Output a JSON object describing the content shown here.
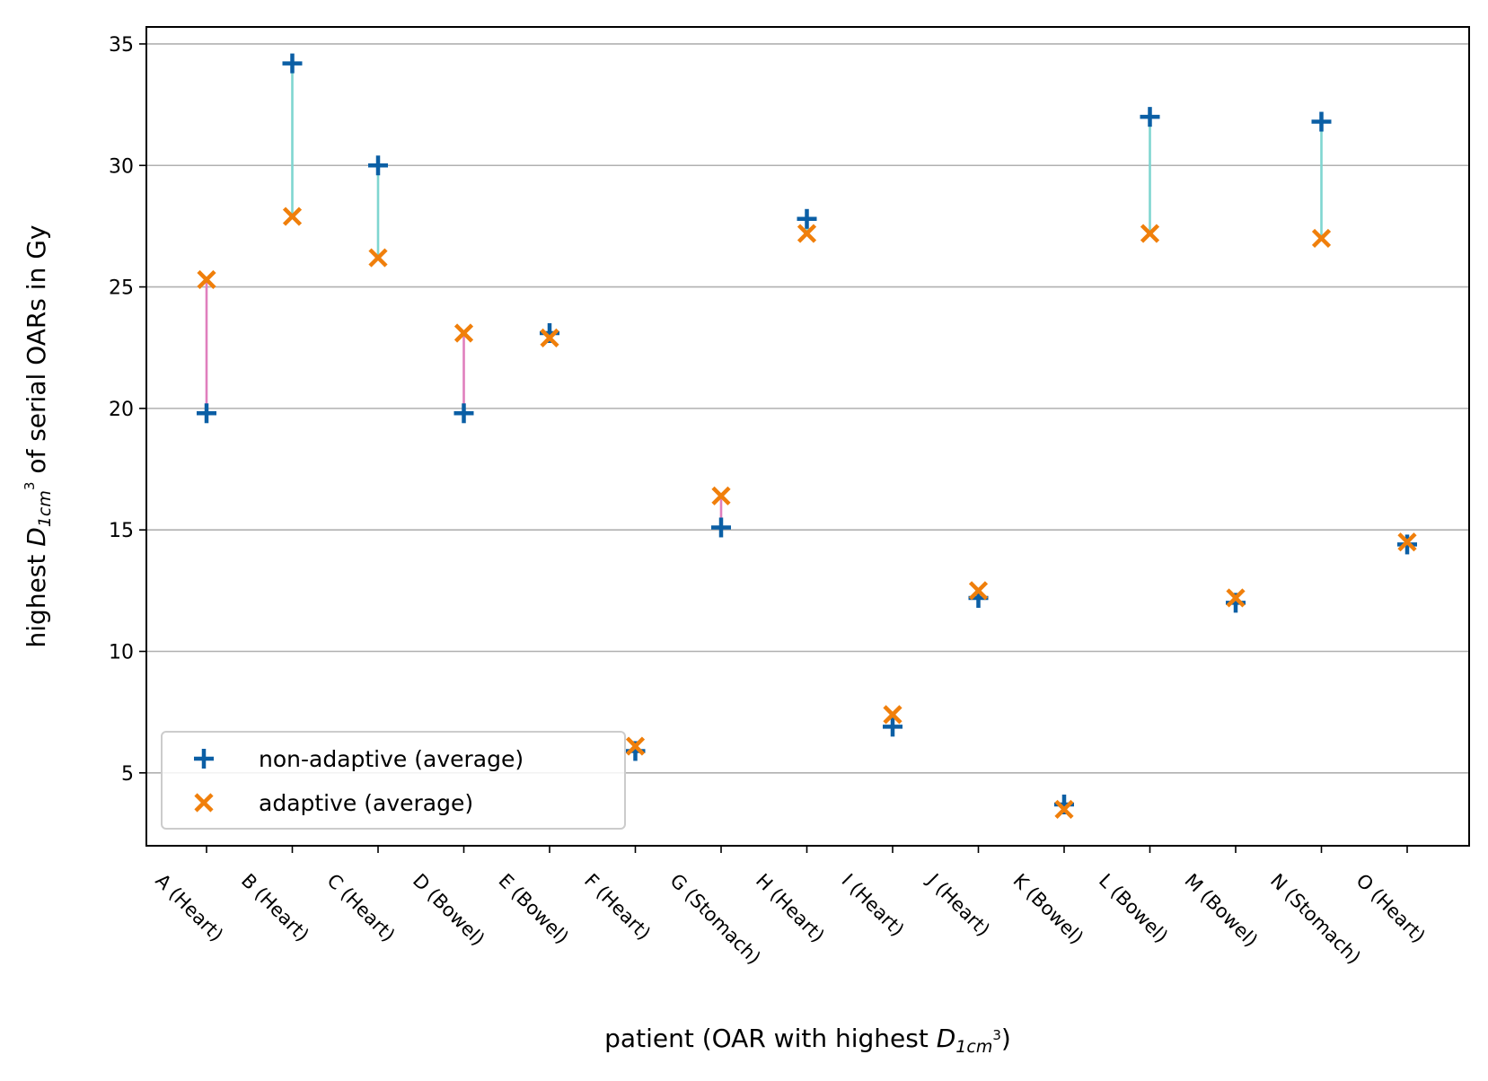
{
  "chart_data": {
    "type": "scatter",
    "xlabel": "patient (OAR with highest D1cm³)",
    "xlabel_parts": {
      "pre": "patient (OAR with highest ",
      "var": "D",
      "sub": "1cm",
      "sup": "3",
      "post": ")"
    },
    "ylabel": "highest D1cm³ of serial OARs in Gy",
    "ylabel_parts": {
      "pre": "highest ",
      "var": "D",
      "sub": "1cm",
      "sup": "3",
      "post": " of serial OARs in Gy"
    },
    "ylim": [
      2,
      35.7
    ],
    "yticks": [
      5,
      10,
      15,
      20,
      25,
      30,
      35
    ],
    "grid": "y",
    "legend_position": "lower-left",
    "categories": [
      "A (Heart)",
      "B (Heart)",
      "C (Heart)",
      "D (Bowel)",
      "E (Bowel)",
      "F (Heart)",
      "G (Stomach)",
      "H (Heart)",
      "I (Heart)",
      "J (Heart)",
      "K (Bowel)",
      "L (Bowel)",
      "M (Bowel)",
      "N (Stomach)",
      "O (Heart)"
    ],
    "series": [
      {
        "name": "non-adaptive (average)",
        "marker": "plus",
        "color": "#0b5fa5",
        "values": [
          19.8,
          34.2,
          30.0,
          19.8,
          23.1,
          5.9,
          15.1,
          27.8,
          6.9,
          12.2,
          3.7,
          32.0,
          12.0,
          31.8,
          14.4
        ]
      },
      {
        "name": "adaptive (average)",
        "marker": "x",
        "color": "#f07f0b",
        "values": [
          25.3,
          27.9,
          26.2,
          23.1,
          22.9,
          6.1,
          16.4,
          27.2,
          7.4,
          12.5,
          3.5,
          27.2,
          12.2,
          27.0,
          14.5
        ]
      }
    ],
    "connector_colors": {
      "decrease": "#7fd6d0",
      "increase": "#e07fbd"
    }
  }
}
